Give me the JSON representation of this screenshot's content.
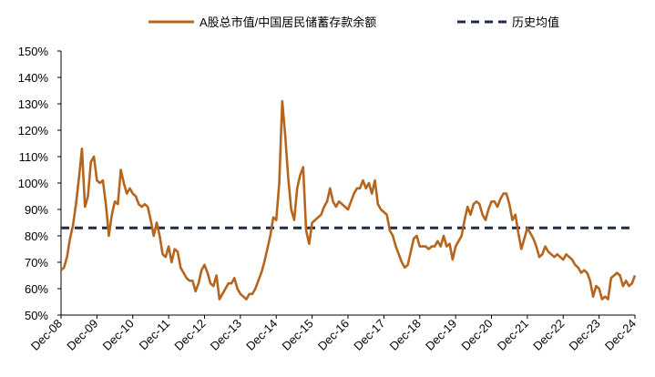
{
  "chart_data": {
    "type": "line",
    "categories": [
      "Dec-08",
      null,
      null,
      null,
      null,
      null,
      null,
      null,
      null,
      null,
      null,
      null,
      "Dec-09",
      null,
      null,
      null,
      null,
      null,
      null,
      null,
      null,
      null,
      null,
      null,
      "Dec-10",
      null,
      null,
      null,
      null,
      null,
      null,
      null,
      null,
      null,
      null,
      null,
      "Dec-11",
      null,
      null,
      null,
      null,
      null,
      null,
      null,
      null,
      null,
      null,
      null,
      "Dec-12",
      null,
      null,
      null,
      null,
      null,
      null,
      null,
      null,
      null,
      null,
      null,
      "Dec-13",
      null,
      null,
      null,
      null,
      null,
      null,
      null,
      null,
      null,
      null,
      null,
      "Dec-14",
      null,
      null,
      null,
      null,
      null,
      null,
      null,
      null,
      null,
      null,
      null,
      "Dec-15",
      null,
      null,
      null,
      null,
      null,
      null,
      null,
      null,
      null,
      null,
      null,
      "Dec-16",
      null,
      null,
      null,
      null,
      null,
      null,
      null,
      null,
      null,
      null,
      null,
      "Dec-17",
      null,
      null,
      null,
      null,
      null,
      null,
      null,
      null,
      null,
      null,
      null,
      "Dec-18",
      null,
      null,
      null,
      null,
      null,
      null,
      null,
      null,
      null,
      null,
      null,
      "Dec-19",
      null,
      null,
      null,
      null,
      null,
      null,
      null,
      null,
      null,
      null,
      null,
      "Dec-20",
      null,
      null,
      null,
      null,
      null,
      null,
      null,
      null,
      null,
      null,
      null,
      "Dec-21",
      null,
      null,
      null,
      null,
      null,
      null,
      null,
      null,
      null,
      null,
      null,
      "Dec-22",
      null,
      null,
      null,
      null,
      null,
      null,
      null,
      null,
      null,
      null,
      null,
      "Dec-23",
      null,
      null,
      null,
      null,
      null,
      null,
      null,
      null,
      null,
      null,
      null,
      "Dec-24"
    ],
    "series": [
      {
        "name": "A股总市值/中国居民储蓄存款余额",
        "color": "#b5651d",
        "values": [
          67,
          68,
          72,
          79,
          84,
          92,
          102,
          113,
          91,
          95,
          108,
          110,
          101,
          100,
          101,
          92,
          80,
          88,
          93,
          92,
          105,
          100,
          96,
          98,
          96,
          95,
          92,
          91,
          92,
          91,
          86,
          80,
          85,
          80,
          73,
          72,
          76,
          70,
          75,
          74,
          68,
          66,
          64,
          63,
          63,
          59,
          62,
          67,
          69,
          66,
          62,
          61,
          65,
          56,
          58,
          60,
          62,
          62,
          64,
          60,
          58,
          57,
          56,
          58,
          58,
          60,
          63,
          66,
          70,
          75,
          80,
          87,
          86,
          100,
          131,
          118,
          102,
          90,
          86,
          98,
          103,
          106,
          82,
          77,
          85,
          86,
          87,
          88,
          91,
          93,
          98,
          93,
          91,
          93,
          92,
          91,
          90,
          93,
          96,
          98,
          98,
          101,
          98,
          100,
          96,
          101,
          92,
          90,
          89,
          88,
          82,
          80,
          76,
          73,
          70,
          68,
          69,
          74,
          79,
          80,
          76,
          76,
          76,
          75,
          76,
          76,
          78,
          76,
          80,
          76,
          77,
          71,
          76,
          78,
          80,
          86,
          91,
          88,
          92,
          93,
          92,
          88,
          86,
          90,
          93,
          93,
          91,
          94,
          96,
          96,
          92,
          86,
          88,
          81,
          75,
          79,
          83,
          81,
          79,
          76,
          72,
          73,
          76,
          74,
          73,
          72,
          73,
          72,
          71,
          73,
          72,
          71,
          69,
          68,
          66,
          67,
          66,
          63,
          57,
          61,
          60,
          56,
          57,
          56,
          64,
          65,
          66,
          65,
          61,
          63,
          61,
          62,
          65
        ]
      }
    ],
    "reference_line": {
      "name": "历史均值",
      "color": "#1f2d4a",
      "value": 83,
      "style": "dashed"
    },
    "ylim": [
      50,
      150
    ],
    "yticks": [
      {
        "value": 50,
        "label": "50%"
      },
      {
        "value": 60,
        "label": "60%"
      },
      {
        "value": 70,
        "label": "70%"
      },
      {
        "value": 80,
        "label": "80%"
      },
      {
        "value": 90,
        "label": "90%"
      },
      {
        "value": 100,
        "label": "100%"
      },
      {
        "value": 110,
        "label": "110%"
      },
      {
        "value": 120,
        "label": "120%"
      },
      {
        "value": 130,
        "label": "130%"
      },
      {
        "value": 140,
        "label": "140%"
      },
      {
        "value": 150,
        "label": "150%"
      }
    ],
    "grid": false,
    "legend": "top"
  }
}
